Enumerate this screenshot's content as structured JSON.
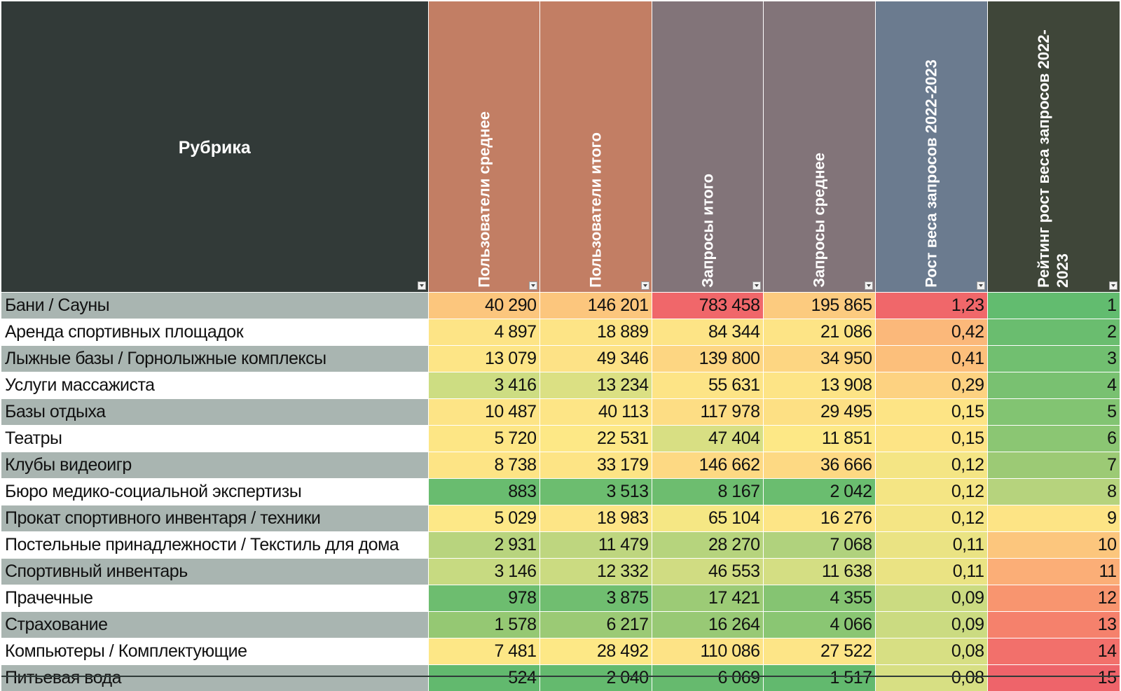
{
  "table": {
    "header": {
      "rubric": "Рубрика",
      "columns": [
        "Пользователи среднее",
        "Пользователи итого",
        "Запросы итого",
        "Запросы среднее",
        "Рост веса запросов 2022-2023",
        "Рейтинг рост веса запросов 2022-2023"
      ]
    },
    "colors": {
      "header_rubric": "#323a38",
      "header_users": "#c27e64",
      "header_requests": "#827479",
      "header_growth": "#6b7b8f",
      "header_rating": "#3f4639",
      "row_alt": "#a9b5b1"
    },
    "rows": [
      {
        "rubric": "Бани / Сауны",
        "values": [
          "40 290",
          "146 201",
          "783 458",
          "195 865",
          "1,23",
          "1"
        ]
      },
      {
        "rubric": "Аренда спортивных площадок",
        "values": [
          "4 897",
          "18 889",
          "84 344",
          "21 086",
          "0,42",
          "2"
        ]
      },
      {
        "rubric": "Лыжные базы / Горнолыжные комплексы",
        "values": [
          "13 079",
          "49 346",
          "139 800",
          "34 950",
          "0,41",
          "3"
        ]
      },
      {
        "rubric": "Услуги массажиста",
        "values": [
          "3 416",
          "13 234",
          "55 631",
          "13 908",
          "0,29",
          "4"
        ]
      },
      {
        "rubric": "Базы отдыха",
        "values": [
          "10 487",
          "40 113",
          "117 978",
          "29 495",
          "0,15",
          "5"
        ]
      },
      {
        "rubric": "Театры",
        "values": [
          "5 720",
          "22 531",
          "47 404",
          "11 851",
          "0,15",
          "6"
        ]
      },
      {
        "rubric": "Клубы видеоигр",
        "values": [
          "8 738",
          "33 179",
          "146 662",
          "36 666",
          "0,12",
          "7"
        ]
      },
      {
        "rubric": "Бюро медико-социальной экспертизы",
        "values": [
          "883",
          "3 513",
          "8 167",
          "2 042",
          "0,12",
          "8"
        ]
      },
      {
        "rubric": "Прокат спортивного инвентаря / техники",
        "values": [
          "5 029",
          "18 983",
          "65 104",
          "16 276",
          "0,12",
          "9"
        ]
      },
      {
        "rubric": "Постельные принадлежности / Текстиль для дома",
        "values": [
          "2 931",
          "11 479",
          "28 270",
          "7 068",
          "0,11",
          "10"
        ]
      },
      {
        "rubric": "Спортивный инвентарь",
        "values": [
          "3 146",
          "12 332",
          "46 553",
          "11 638",
          "0,11",
          "11"
        ]
      },
      {
        "rubric": "Прачечные",
        "values": [
          "978",
          "3 875",
          "17 421",
          "4 355",
          "0,09",
          "12"
        ]
      },
      {
        "rubric": "Страхование",
        "values": [
          "1 578",
          "6 217",
          "16 264",
          "4 066",
          "0,09",
          "13"
        ]
      },
      {
        "rubric": "Компьютеры / Комплектующие",
        "values": [
          "7 481",
          "28 492",
          "110 086",
          "27 522",
          "0,08",
          "14"
        ]
      },
      {
        "rubric": "Питьевая вода",
        "values": [
          "524",
          "2 040",
          "6 069",
          "1 517",
          "0,08",
          "15"
        ]
      }
    ],
    "cell_colors": [
      [
        "#fcc67d",
        "#fcc67d",
        "#f0676a",
        "#fccb7f",
        "#f0676a",
        "#62bc6f"
      ],
      [
        "#fde486",
        "#fde486",
        "#fde486",
        "#fde486",
        "#fbb87a",
        "#6abd6f"
      ],
      [
        "#fde586",
        "#fde286",
        "#fdd682",
        "#fdd682",
        "#fcbf7b",
        "#71bf70"
      ],
      [
        "#cddd82",
        "#dbe083",
        "#fde486",
        "#fde486",
        "#fdd281",
        "#79c171"
      ],
      [
        "#fde486",
        "#fde586",
        "#fddd84",
        "#fde084",
        "#fde485",
        "#82c472"
      ],
      [
        "#fde685",
        "#fde886",
        "#d8df83",
        "#fde886",
        "#fde485",
        "#8bc673"
      ],
      [
        "#fde485",
        "#fde485",
        "#fdd983",
        "#fdd983",
        "#f4e584",
        "#9cca75"
      ],
      [
        "#69bc6f",
        "#6cbd6f",
        "#6dbd6f",
        "#6abd6f",
        "#f4e584",
        "#b6d37d"
      ],
      [
        "#fde887",
        "#fde586",
        "#f5e784",
        "#fde586",
        "#f4e584",
        "#fde485"
      ],
      [
        "#b8d47e",
        "#bed67f",
        "#b6d47d",
        "#b0d27d",
        "#eae383",
        "#fcc67d"
      ],
      [
        "#c7da81",
        "#cbdb81",
        "#d0dc82",
        "#d4de83",
        "#eae383",
        "#fbae77"
      ],
      [
        "#6dbd6f",
        "#70be70",
        "#9ccb76",
        "#85c472",
        "#cbdb81",
        "#f8956f"
      ],
      [
        "#95c873",
        "#9bca75",
        "#98c975",
        "#8ac673",
        "#cbdb81",
        "#f5816c"
      ],
      [
        "#fde786",
        "#fde886",
        "#fde386",
        "#fde587",
        "#d7df83",
        "#f2706b"
      ],
      [
        "#62b96e",
        "#64ba6e",
        "#66ba6e",
        "#62b96e",
        "#d7df83",
        "#ee646a"
      ]
    ]
  }
}
